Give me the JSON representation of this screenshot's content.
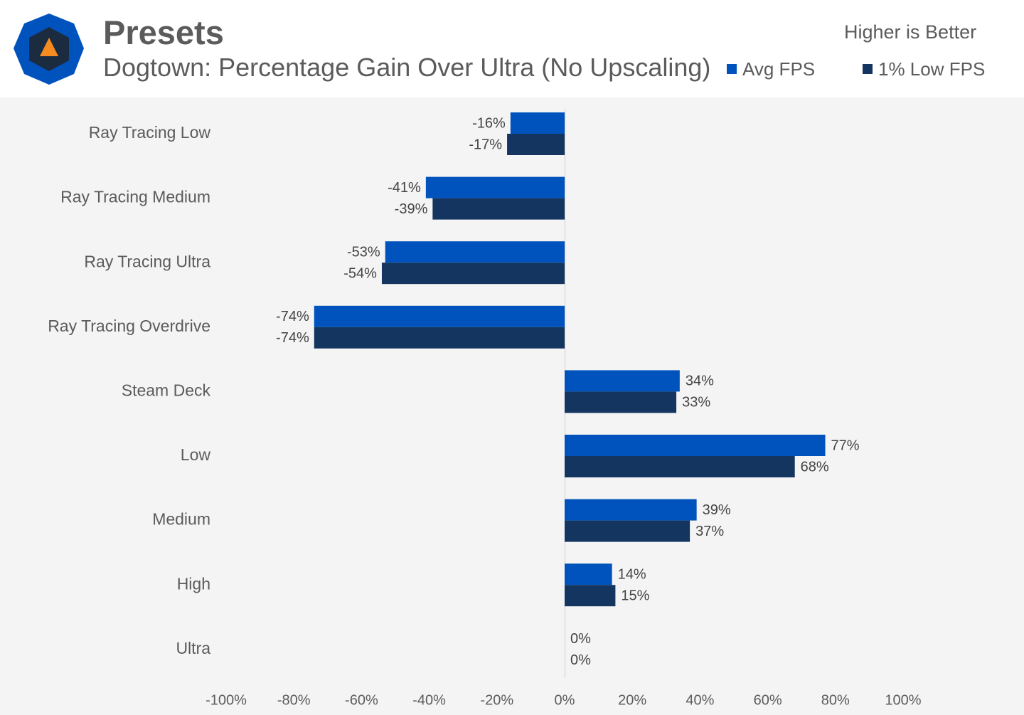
{
  "header": {
    "title": "Presets",
    "subtitle": "Dogtown: Percentage Gain Over Ultra (No Upscaling)",
    "note": "Higher is Better"
  },
  "colors": {
    "avg": "#0053bd",
    "low": "#13355f",
    "logo_outer": "#0053bd",
    "logo_inner": "#1c2c40",
    "logo_triangle": "#f68b1f"
  },
  "icons": {
    "logo": "hexagon-triangle-logo"
  },
  "chart_data": {
    "type": "bar",
    "orientation": "horizontal",
    "categories": [
      "Ray Tracing Low",
      "Ray Tracing Medium",
      "Ray Tracing Ultra",
      "Ray Tracing Overdrive",
      "Steam Deck",
      "Low",
      "Medium",
      "High",
      "Ultra"
    ],
    "series": [
      {
        "name": "Avg FPS",
        "values": [
          -16,
          -41,
          -53,
          -74,
          34,
          77,
          39,
          14,
          0
        ]
      },
      {
        "name": "1% Low FPS",
        "values": [
          -17,
          -39,
          -54,
          -74,
          33,
          68,
          37,
          15,
          0
        ]
      }
    ],
    "xlim": [
      -100,
      100
    ],
    "xticks": [
      -100,
      -80,
      -60,
      -40,
      -20,
      0,
      20,
      40,
      60,
      80,
      100
    ],
    "value_suffix": "%",
    "legend_position": "top-right",
    "grid": false
  }
}
